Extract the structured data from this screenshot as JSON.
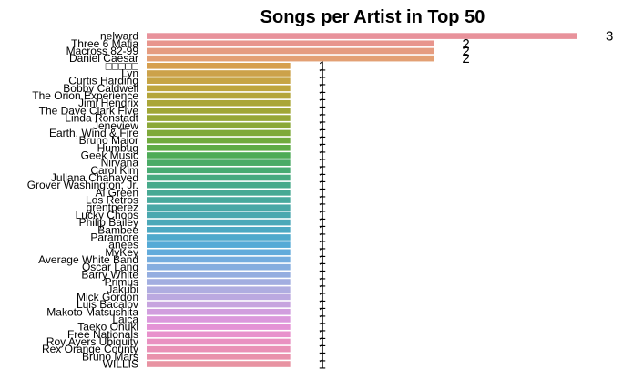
{
  "chart_data": {
    "type": "bar",
    "orientation": "horizontal",
    "title": "Songs per Artist in Top 50",
    "xlabel": "",
    "ylabel": "",
    "xlim": [
      0,
      3
    ],
    "grid": false,
    "legend": "none",
    "categories": [
      "nelward",
      "Three 6 Mafia",
      "Macross 82-99",
      "Daniel Caesar",
      "□□□□□",
      "Lyn",
      "Curtis Harding",
      "Bobby Caldwell",
      "The Orion Experience",
      "Jimi Hendrix",
      "The Dave Clark Five",
      "Linda Ronstadt",
      "Jeneview",
      "Earth, Wind & Fire",
      "Bruno Major",
      "Humbug",
      "Geek Music",
      "Nirvana",
      "Carol Kim",
      "Juliana Chahayed",
      "Grover Washington, Jr.",
      "Al Green",
      "Los Retros",
      "grentperez",
      "Lucky Chops",
      "Philip Bailey",
      "Bambee",
      "Paramore",
      "anees",
      "MyKey",
      "Average White Band",
      "Oscar Lang",
      "Barry White",
      "Primus",
      "Jakubi",
      "Mick Gordon",
      "Luis Bacalov",
      "Makoto Matsushita",
      "Laica",
      "Taeko Onuki",
      "Free Nationals",
      "Roy Ayers Ubiquity",
      "Rex Orange County",
      "Bruno Mars",
      "WILLIS"
    ],
    "values": [
      3,
      2,
      2,
      2,
      1,
      1,
      1,
      1,
      1,
      1,
      1,
      1,
      1,
      1,
      1,
      1,
      1,
      1,
      1,
      1,
      1,
      1,
      1,
      1,
      1,
      1,
      1,
      1,
      1,
      1,
      1,
      1,
      1,
      1,
      1,
      1,
      1,
      1,
      1,
      1,
      1,
      1,
      1,
      1,
      1
    ],
    "data_labels": [
      "3",
      "2",
      "2",
      "2",
      "1",
      "1",
      "1",
      "1",
      "1",
      "1",
      "1",
      "1",
      "1",
      "1",
      "1",
      "1",
      "1",
      "1",
      "1",
      "1",
      "1",
      "1",
      "1",
      "1",
      "1",
      "1",
      "1",
      "1",
      "1",
      "1",
      "1",
      "1",
      "1",
      "1",
      "1",
      "1",
      "1",
      "1",
      "1",
      "1",
      "1",
      "1",
      "1",
      "1",
      "1"
    ],
    "colors": [
      "#e8929b",
      "#e8958d",
      "#e59c80",
      "#e3a074",
      "#d69f4e",
      "#cca24a",
      "#c6a444",
      "#bea53d",
      "#b4a53a",
      "#aaa637",
      "#a0a636",
      "#96a737",
      "#8ba838",
      "#7ea939",
      "#6faa3d",
      "#5dab45",
      "#4eab57",
      "#4aab66",
      "#48ab73",
      "#47aa80",
      "#47aa8a",
      "#47a994",
      "#48a99d",
      "#49a8a6",
      "#4aa8af",
      "#4ba8b8",
      "#4ca8c2",
      "#4ea9cc",
      "#55aad6",
      "#62abdb",
      "#74acde",
      "#85addf",
      "#95aee0",
      "#a2aee0",
      "#afade0",
      "#bba9e0",
      "#c7a4df",
      "#d19ede",
      "#db98dc",
      "#e493d6",
      "#e891cc",
      "#e991c1",
      "#e991b6",
      "#e992ac",
      "#e893a2"
    ]
  }
}
